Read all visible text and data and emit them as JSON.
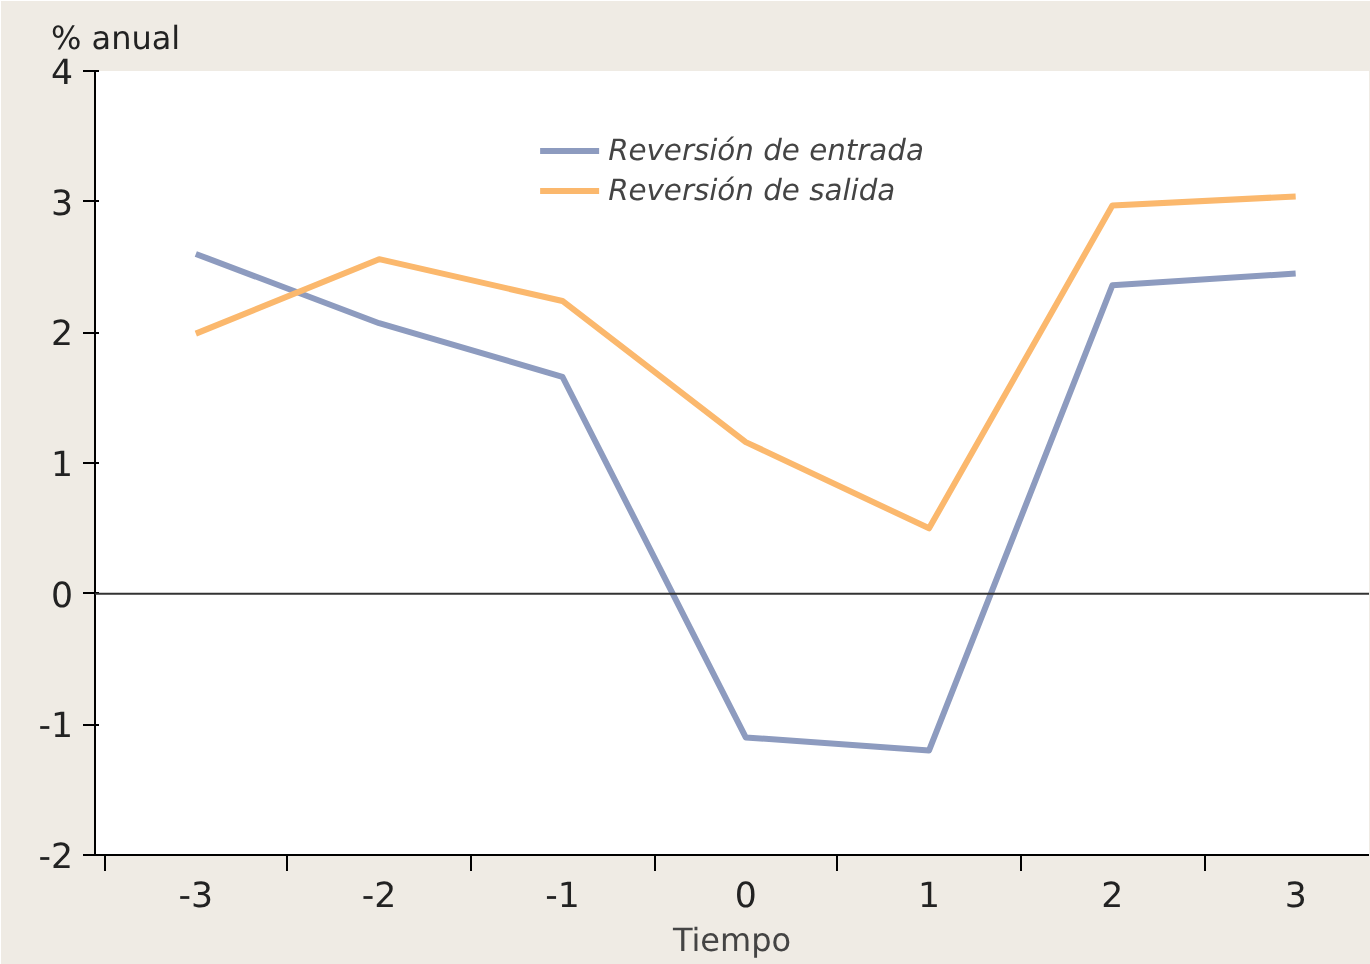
{
  "chart_data": {
    "type": "line",
    "xlabel": "Tiempo",
    "ylabel": "% anual",
    "categories": [
      "-3",
      "-2",
      "-1",
      "0",
      "1",
      "2",
      "3"
    ],
    "series": [
      {
        "name": "Reversión de entrada",
        "color": "#8d9bbf",
        "values": [
          2.6,
          2.07,
          1.66,
          -1.1,
          -1.2,
          2.36,
          2.45
        ]
      },
      {
        "name": "Reversión de salida",
        "color": "#fbb86d",
        "values": [
          1.99,
          2.56,
          2.24,
          1.16,
          0.5,
          2.97,
          3.04
        ]
      }
    ],
    "ylim": [
      -2,
      4
    ],
    "yticks": [
      -2,
      -1,
      0,
      1,
      2,
      3,
      4
    ],
    "ref_lines": [
      {
        "axis": "y",
        "value": 0,
        "color": "#333333"
      }
    ],
    "grid": false,
    "legend": "top",
    "line_style": "solid",
    "marker": "none"
  }
}
